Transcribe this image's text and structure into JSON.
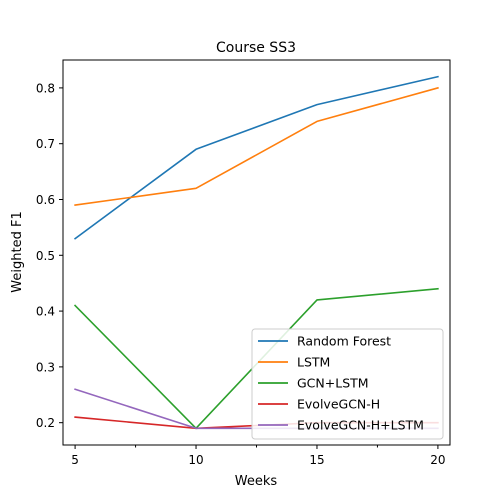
{
  "chart_data": {
    "type": "line",
    "title": "Course SS3",
    "xlabel": "Weeks",
    "ylabel": "Weighted F1",
    "x": [
      5,
      10,
      15,
      20
    ],
    "xticks": [
      "5",
      "10",
      "15",
      "20"
    ],
    "xlim": [
      4.5,
      20.5
    ],
    "ylim": [
      0.16,
      0.85
    ],
    "yticks": [
      "0.2",
      "0.3",
      "0.4",
      "0.5",
      "0.6",
      "0.7",
      "0.8"
    ],
    "grid": false,
    "legend_position": "lower-right",
    "series": [
      {
        "name": "Random Forest",
        "color": "#1f77b4",
        "values": [
          0.53,
          0.69,
          0.77,
          0.82
        ]
      },
      {
        "name": "LSTM",
        "color": "#ff7f0e",
        "values": [
          0.59,
          0.62,
          0.74,
          0.8
        ]
      },
      {
        "name": "GCN+LSTM",
        "color": "#2ca02c",
        "values": [
          0.41,
          0.19,
          0.42,
          0.44
        ]
      },
      {
        "name": "EvolveGCN-H",
        "color": "#d62728",
        "values": [
          0.21,
          0.19,
          0.2,
          0.2
        ]
      },
      {
        "name": "EvolveGCN-H+LSTM",
        "color": "#9467bd",
        "values": [
          0.26,
          0.19,
          0.19,
          0.19
        ]
      }
    ]
  }
}
